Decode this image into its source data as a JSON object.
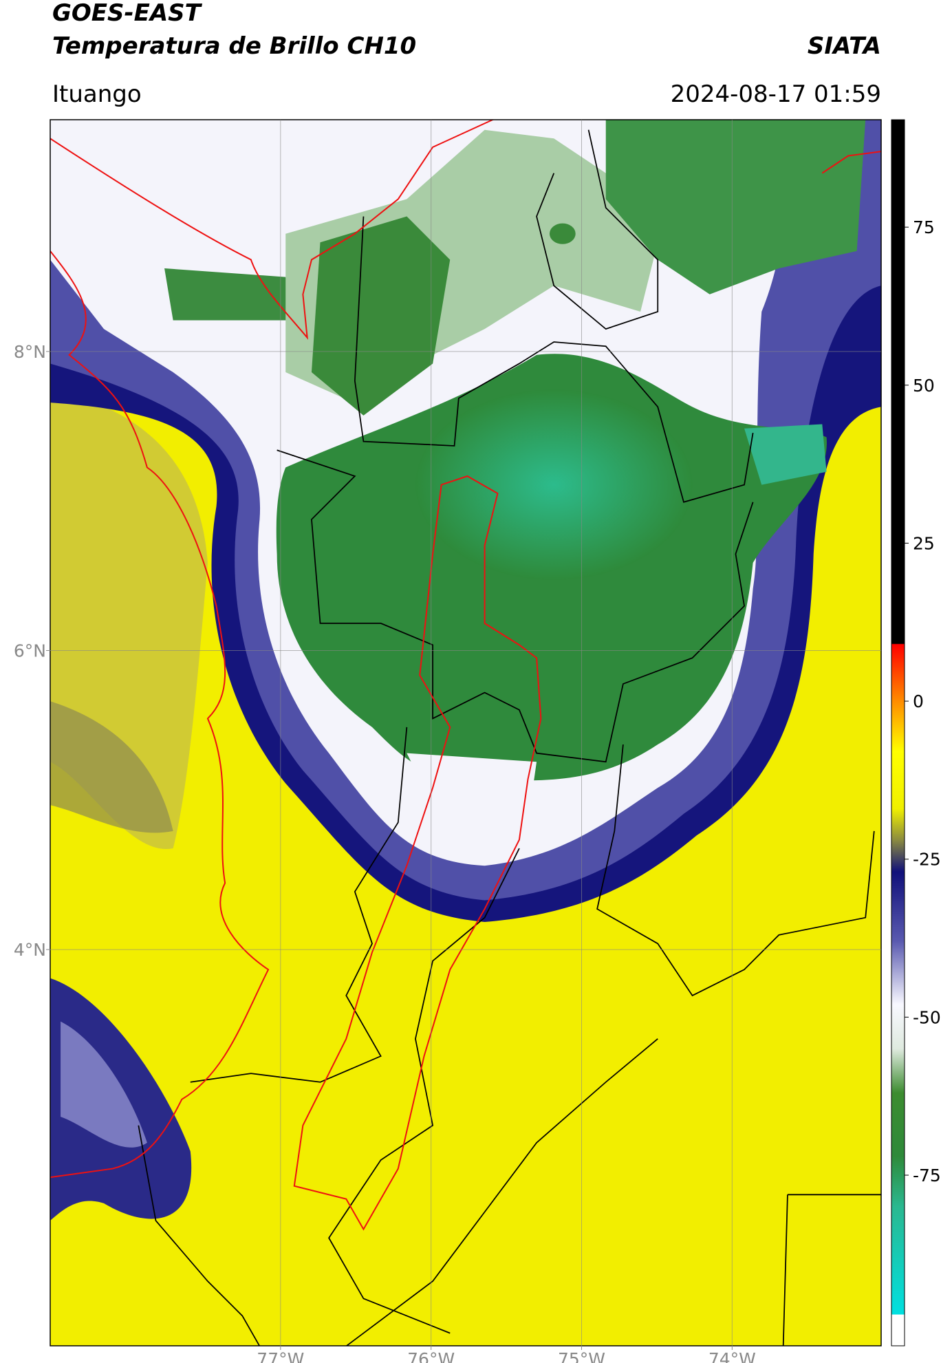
{
  "header": {
    "title_line1": "GOES-EAST",
    "title_line2": "Temperatura de Brillo CH10",
    "brand": "SIATA",
    "location": "Ituango",
    "timestamp": "2024-08-17 01:59"
  },
  "map": {
    "xlim": [
      -78.53,
      -73.01
    ],
    "ylim": [
      1.35,
      9.55
    ],
    "xticks": [
      {
        "value": -77,
        "label": "77°W"
      },
      {
        "value": -76,
        "label": "76°W"
      },
      {
        "value": -75,
        "label": "75°W"
      },
      {
        "value": -74,
        "label": "74°W"
      }
    ],
    "yticks": [
      {
        "value": 8,
        "label": "8°N"
      },
      {
        "value": 6,
        "label": "6°N"
      },
      {
        "value": 4,
        "label": "4°N"
      }
    ],
    "grid": true
  },
  "colorbar": {
    "lim": [
      -102,
      92
    ],
    "ticks": [
      75,
      50,
      25,
      0,
      -25,
      -50,
      -75
    ],
    "stops": [
      {
        "value": 92,
        "color": "#000000"
      },
      {
        "value": 9.1,
        "color": "#000000"
      },
      {
        "value": 9,
        "color": "#ff0000"
      },
      {
        "value": 0,
        "color": "#ff8c00"
      },
      {
        "value": -8,
        "color": "#ffff00"
      },
      {
        "value": -17,
        "color": "#f0f000"
      },
      {
        "value": -22,
        "color": "#8a8a40"
      },
      {
        "value": -27,
        "color": "#10107a"
      },
      {
        "value": -38,
        "color": "#5a5ab0"
      },
      {
        "value": -48,
        "color": "#f8f8ff"
      },
      {
        "value": -55,
        "color": "#dfeadf"
      },
      {
        "value": -62,
        "color": "#3c8c30"
      },
      {
        "value": -72,
        "color": "#2e8a3a"
      },
      {
        "value": -80,
        "color": "#2ab890"
      },
      {
        "value": -97,
        "color": "#00e0e0"
      },
      {
        "value": -97.1,
        "color": "#ffffff"
      },
      {
        "value": -102,
        "color": "#ffffff"
      }
    ]
  }
}
